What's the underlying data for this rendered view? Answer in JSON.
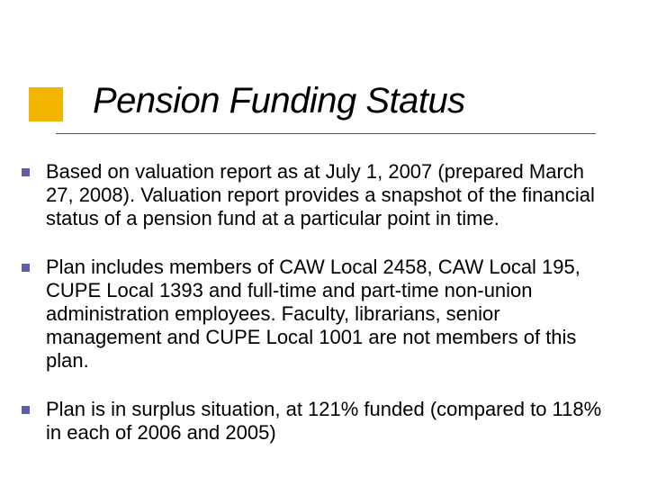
{
  "title": "Pension Funding Status",
  "colors": {
    "accent_square": "#f2b600",
    "bullet_marker": "#5e5ea8",
    "title_text": "#000000",
    "body_text": "#000000",
    "underline": "#555555",
    "background": "#ffffff"
  },
  "typography": {
    "title_fontsize": 40,
    "title_style": "italic",
    "body_fontsize": 22,
    "font_family": "Verdana"
  },
  "bullets": [
    "Based on valuation report as at July 1, 2007 (prepared March 27, 2008).  Valuation report provides a snapshot of the financial status of a pension fund at a particular point in time.",
    "Plan includes members of CAW Local 2458, CAW Local 195, CUPE Local 1393 and full-time and part-time non-union administration employees. Faculty, librarians, senior management and CUPE Local 1001 are not members of this plan.",
    "Plan is in surplus situation, at 121% funded (compared to 118% in each of 2006 and 2005)"
  ]
}
